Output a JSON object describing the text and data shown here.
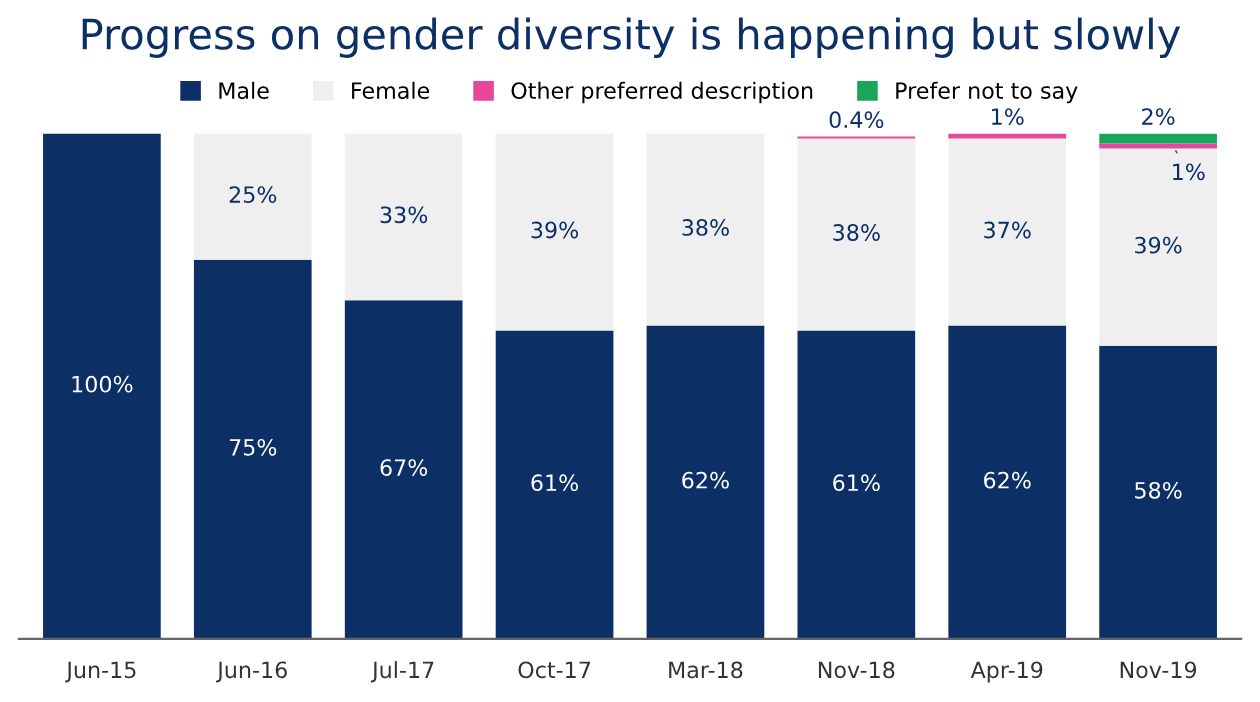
{
  "chart_data": {
    "type": "bar",
    "title": "Progress on gender diversity is happening but slowly",
    "categories": [
      "Jun-15",
      "Jun-16",
      "Jul-17",
      "Oct-17",
      "Mar-18",
      "Nov-18",
      "Apr-19",
      "Nov-19"
    ],
    "stacked": true,
    "legend": "top",
    "series": [
      {
        "name": "Male",
        "color": "#0c3066",
        "values": [
          100,
          75,
          67,
          61,
          62,
          61,
          62,
          58
        ],
        "value_labels": [
          "100%",
          "75%",
          "67%",
          "61%",
          "62%",
          "61%",
          "62%",
          "58%"
        ]
      },
      {
        "name": "Female",
        "color": "#efefef",
        "values": [
          null,
          25,
          33,
          39,
          38,
          38,
          37,
          39
        ],
        "value_labels": [
          null,
          "25%",
          "33%",
          "39%",
          "38%",
          "38%",
          "37%",
          "39%"
        ]
      },
      {
        "name": "Other preferred description",
        "color": "#e8479a",
        "values": [
          null,
          null,
          null,
          null,
          null,
          0.4,
          1,
          1
        ],
        "value_labels": [
          null,
          null,
          null,
          null,
          null,
          "0.4%",
          "1%",
          "1%"
        ]
      },
      {
        "name": "Prefer not to say",
        "color": "#1aa65a",
        "values": [
          null,
          null,
          null,
          null,
          null,
          null,
          null,
          2
        ],
        "value_labels": [
          null,
          null,
          null,
          null,
          null,
          null,
          null,
          "2%"
        ]
      }
    ]
  }
}
